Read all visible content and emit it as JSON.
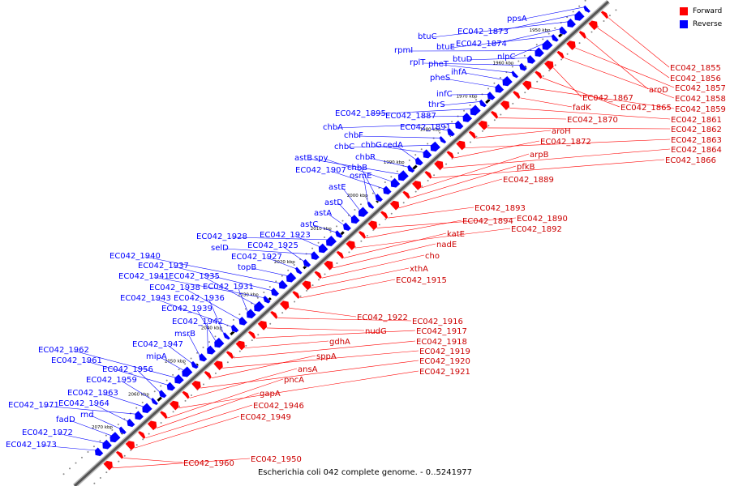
{
  "caption": "Escherichia coli 042 complete genome. - 0..5241977",
  "legend": [
    {
      "label": "Forward",
      "color": "#ff0000"
    },
    {
      "label": "Reverse",
      "color": "#0000ff"
    }
  ],
  "colors": {
    "forward": "#ff0000",
    "reverse": "#0000ff",
    "axis": "#555555"
  },
  "axis_labels": [
    "1950 kbp",
    "1960 kbp",
    "1970 kbp",
    "1980 kbp",
    "1990 kbp",
    "2000 kbp",
    "2010 kbp",
    "2020 kbp",
    "2030 kbp",
    "2040 kbp",
    "2050 kbp",
    "2060 kbp",
    "2070 kbp"
  ],
  "reverse_genes": [
    "ppsA",
    "EC042_1873",
    "btuC",
    "EC042_1874",
    "btuE",
    "nlpC",
    "rpmI",
    "btuD",
    "rplT",
    "pheT",
    "ihfA",
    "pheS",
    "infC",
    "thrS",
    "EC042_1895",
    "EC042_1887",
    "chbA",
    "EC042_1891",
    "chbF",
    "chbC",
    "chbG",
    "cedA",
    "chbR",
    "astB",
    "spy",
    "EC042_1907",
    "chbB",
    "osmE",
    "astE",
    "astD",
    "astA",
    "astC",
    "EC042_1928",
    "EC042_1923",
    "selD",
    "EC042_1925",
    "EC042_1927",
    "topB",
    "EC042_1940",
    "EC042_1937",
    "EC042_1941",
    "EC042_1935",
    "EC042_1931",
    "EC042_1938",
    "EC042_1943",
    "EC042_1936",
    "EC042_1939",
    "EC042_1942",
    "msrB",
    "EC042_1947",
    "mipA",
    "EC042_1962",
    "EC042_1961",
    "EC042_1956",
    "EC042_1959",
    "EC042_1963",
    "EC042_1971",
    "EC042_1964",
    "rnd",
    "fadD",
    "EC042_1972",
    "EC042_1973"
  ],
  "forward_genes": [
    "EC042_1855",
    "EC042_1856",
    "aroD",
    "EC042_1857",
    "EC042_1858",
    "EC042_1867",
    "EC042_1865",
    "EC042_1859",
    "fadK",
    "EC042_1861",
    "EC042_1870",
    "EC042_1862",
    "aroH",
    "EC042_1863",
    "EC042_1872",
    "EC042_1864",
    "EC042_1866",
    "arpB",
    "pfkB",
    "EC042_1889",
    "EC042_1893",
    "EC042_1890",
    "EC042_1894",
    "EC042_1892",
    "katE",
    "nadE",
    "cho",
    "xthA",
    "EC042_1915",
    "EC042_1922",
    "EC042_1916",
    "nudG",
    "EC042_1917",
    "gdhA",
    "EC042_1918",
    "EC042_1919",
    "sppA",
    "EC042_1920",
    "ansA",
    "EC042_1921",
    "pncA",
    "gapA",
    "EC042_1946",
    "EC042_1949",
    "EC042_1960",
    "EC042_1950"
  ]
}
